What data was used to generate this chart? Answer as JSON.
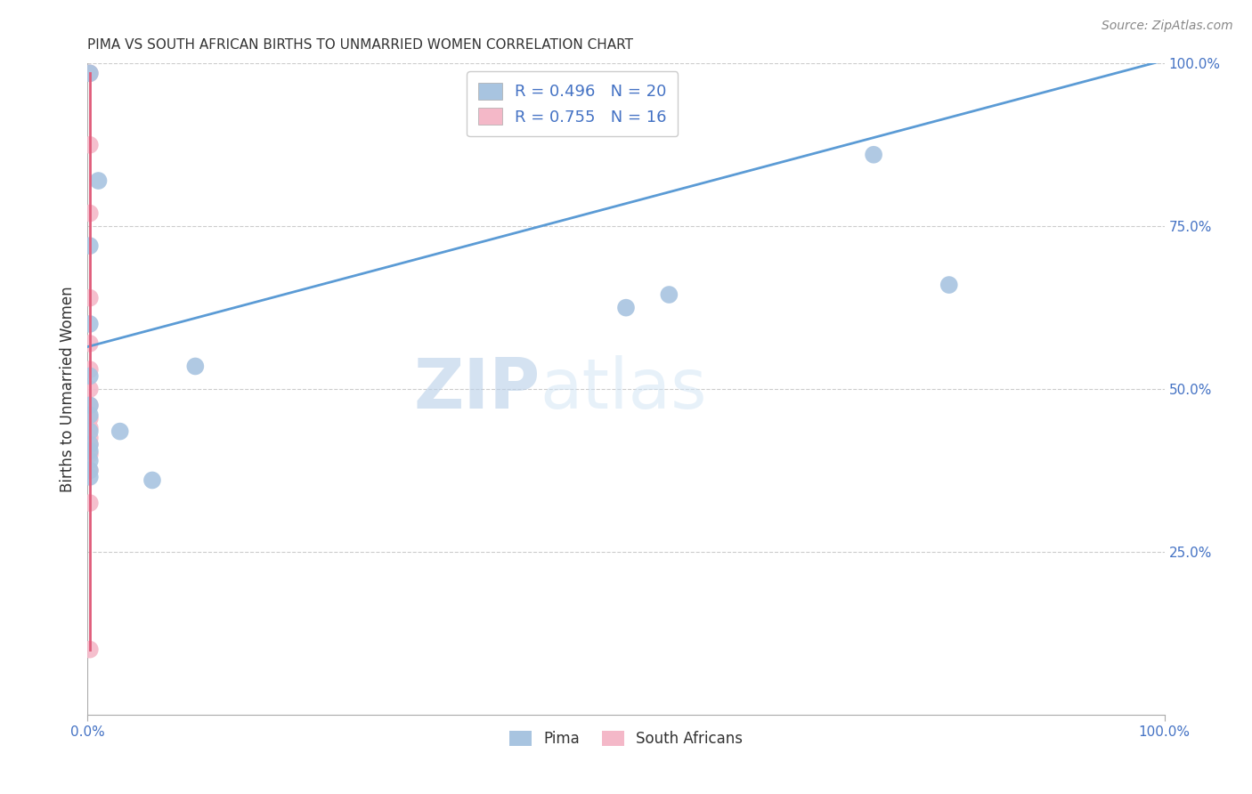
{
  "title": "PIMA VS SOUTH AFRICAN BIRTHS TO UNMARRIED WOMEN CORRELATION CHART",
  "source": "Source: ZipAtlas.com",
  "ylabel": "Births to Unmarried Women",
  "xlim": [
    0.0,
    1.0
  ],
  "ylim": [
    0.0,
    1.0
  ],
  "pima_R": "0.496",
  "pima_N": "20",
  "sa_R": "0.755",
  "sa_N": "16",
  "pima_color": "#a8c4e0",
  "sa_color": "#f4b8c8",
  "pima_line_color": "#5b9bd5",
  "sa_line_color": "#e05c7a",
  "watermark_zip": "ZIP",
  "watermark_atlas": "atlas",
  "pima_points_x": [
    0.002,
    0.01,
    0.002,
    0.002,
    0.002,
    0.002,
    0.002,
    0.002,
    0.002,
    0.002,
    0.002,
    0.002,
    0.002,
    0.03,
    0.06,
    0.1,
    0.5,
    0.54,
    0.73,
    0.8
  ],
  "pima_points_y": [
    0.985,
    0.82,
    0.72,
    0.6,
    0.52,
    0.475,
    0.46,
    0.435,
    0.415,
    0.405,
    0.39,
    0.375,
    0.365,
    0.435,
    0.36,
    0.535,
    0.625,
    0.645,
    0.86,
    0.66
  ],
  "sa_points_x": [
    0.002,
    0.002,
    0.002,
    0.002,
    0.002,
    0.002,
    0.002,
    0.002,
    0.002,
    0.002,
    0.002,
    0.002,
    0.002,
    0.002,
    0.002,
    0.002
  ],
  "sa_points_y": [
    0.985,
    0.875,
    0.77,
    0.64,
    0.57,
    0.53,
    0.5,
    0.475,
    0.455,
    0.44,
    0.425,
    0.415,
    0.4,
    0.375,
    0.325,
    0.1
  ],
  "pima_line_x0": 0.0,
  "pima_line_y0": 0.565,
  "pima_line_x1": 1.0,
  "pima_line_y1": 1.005,
  "sa_line_x0": 0.002,
  "sa_line_y0": 0.1,
  "sa_line_x1": 0.002,
  "sa_line_y1": 0.985
}
